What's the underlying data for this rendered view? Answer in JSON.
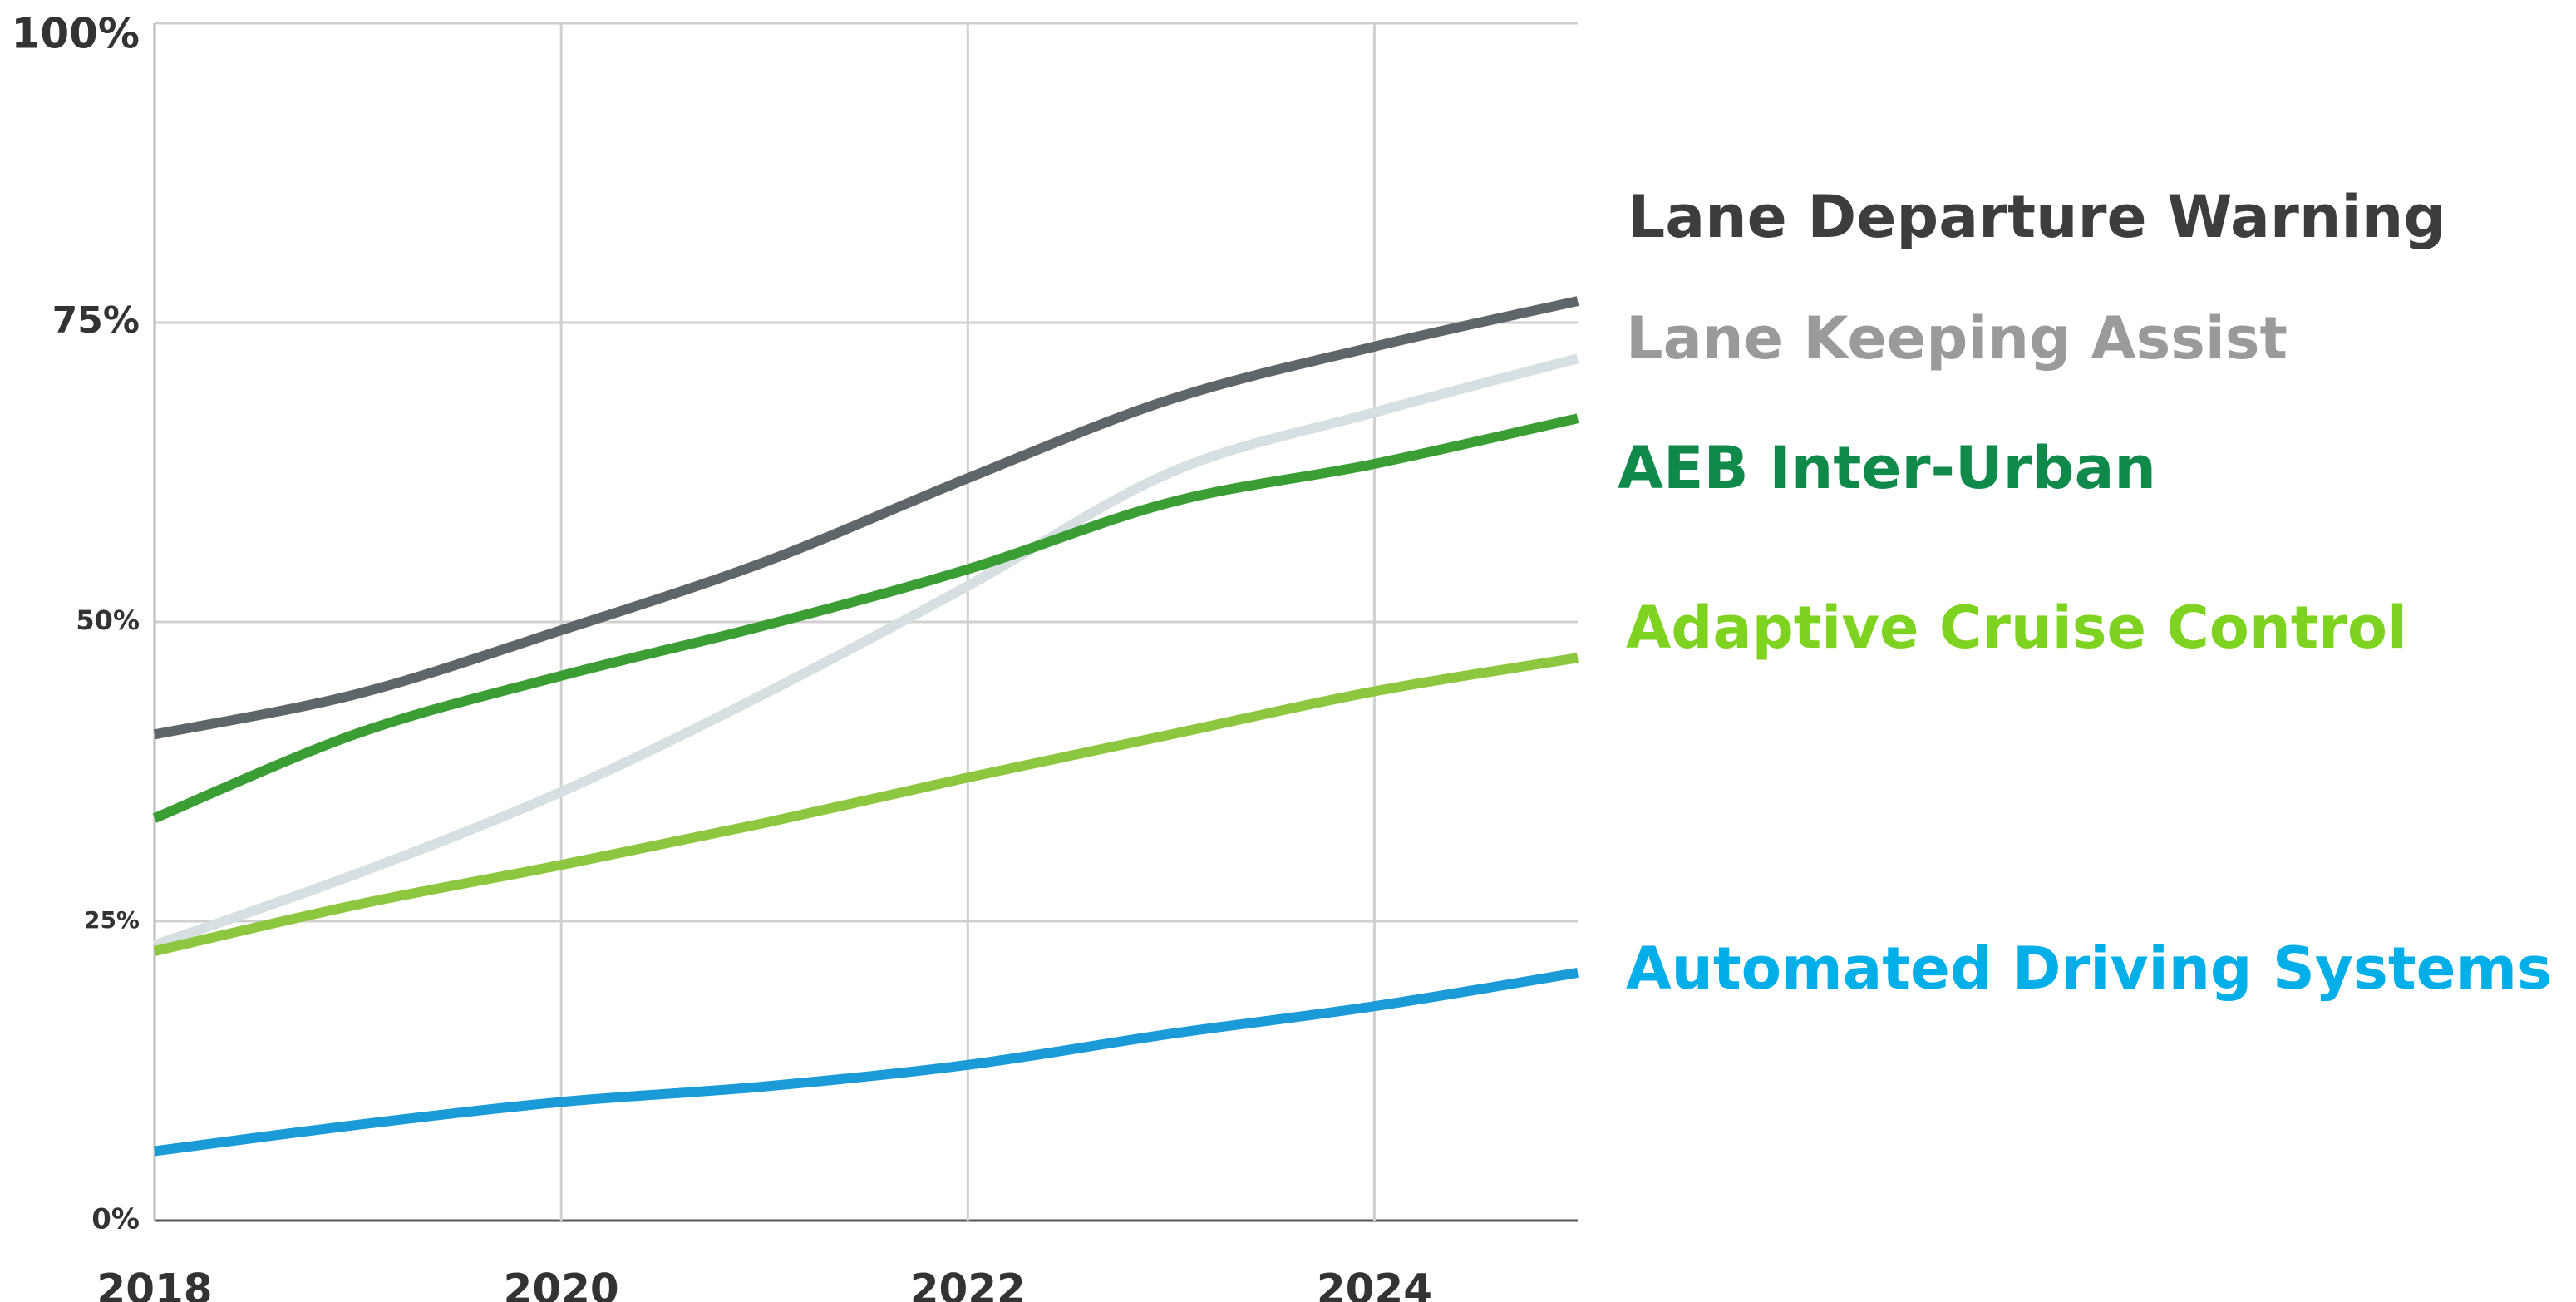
{
  "chart_data": {
    "type": "line",
    "x": [
      2018,
      2019,
      2020,
      2021,
      2022,
      2023,
      2024,
      2025
    ],
    "xlim": [
      2018,
      2025
    ],
    "xticks": [
      2018,
      2020,
      2022,
      2024
    ],
    "ylim": [
      0,
      100
    ],
    "yticks": [
      {
        "value": 0,
        "label": "0%"
      },
      {
        "value": 25,
        "label": "25%"
      },
      {
        "value": 50,
        "label": "50%"
      },
      {
        "value": 75,
        "label": "75%"
      },
      {
        "value": 100,
        "label": "100%"
      }
    ],
    "grid": true,
    "series": [
      {
        "name": "Lane Departure Warning",
        "color": "#5f6669",
        "label_color": "#3d3d3d",
        "values": [
          40.6,
          44,
          49.3,
          55,
          62,
          68.6,
          73,
          76.8
        ]
      },
      {
        "name": "Lane Keeping Assist",
        "color": "#d6e0e3",
        "label_color": "#9a9a9a",
        "values": [
          23,
          29,
          35.8,
          44,
          53,
          62.5,
          67.5,
          72
        ]
      },
      {
        "name": "AEB Inter-Urban",
        "color": "#3a9e35",
        "label_color": "#0f8a4a",
        "values": [
          33.6,
          40.7,
          45.5,
          49.7,
          54.4,
          60,
          63.2,
          67
        ]
      },
      {
        "name": "Adaptive Cruise Control",
        "color": "#8dc63f",
        "label_color": "#7ed321",
        "values": [
          22.5,
          26.4,
          29.7,
          33.2,
          37,
          40.6,
          44.2,
          47
        ]
      },
      {
        "name": "Automated Driving Systems",
        "color": "#1a9ad6",
        "label_color": "#00aee8",
        "values": [
          5.8,
          8,
          9.9,
          11.2,
          13,
          15.6,
          17.9,
          20.7
        ]
      }
    ]
  }
}
